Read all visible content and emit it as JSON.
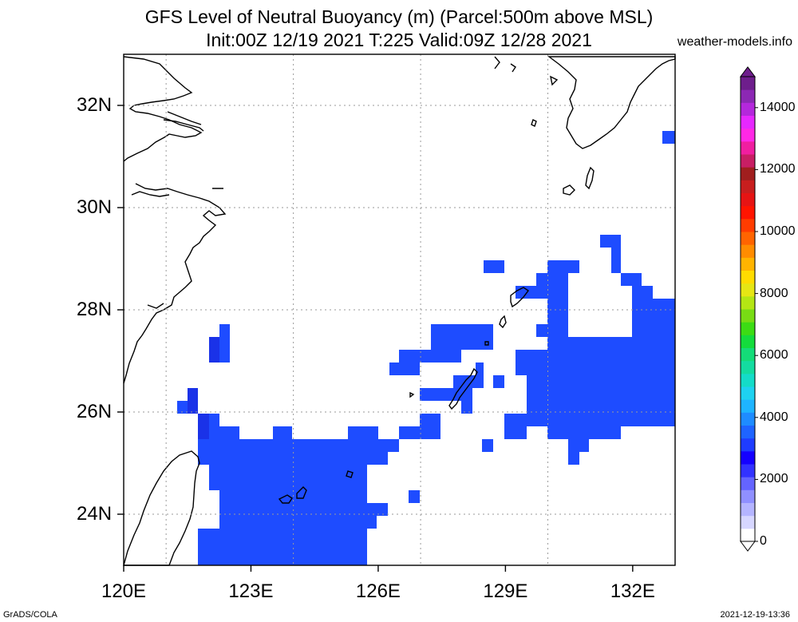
{
  "title_line1": "GFS Level of Neutral Buoyancy (m) (Parcel:500m above MSL)",
  "title_line2": "Init:00Z 12/19 2021 T:225 Valid:09Z 12/28 2021",
  "credit": "weather-models.info",
  "footer_left": "GrADS/COLA",
  "footer_right": "2021-12-19-13:36",
  "map": {
    "lon_range": [
      120,
      133
    ],
    "lat_range": [
      23,
      33
    ],
    "lon_ticks": [
      {
        "value": 120,
        "label": "120E"
      },
      {
        "value": 123,
        "label": "123E"
      },
      {
        "value": 126,
        "label": "126E"
      },
      {
        "value": 129,
        "label": "129E"
      },
      {
        "value": 132,
        "label": "132E"
      }
    ],
    "lat_ticks": [
      {
        "value": 24,
        "label": "24N"
      },
      {
        "value": 26,
        "label": "26N"
      },
      {
        "value": 28,
        "label": "28N"
      },
      {
        "value": 30,
        "label": "30N"
      },
      {
        "value": 32,
        "label": "32N"
      }
    ],
    "fill_color": "#1e4cff",
    "dark_fill_color": "#1a32e8"
  },
  "colorbar": {
    "range": [
      0,
      15000
    ],
    "labels": [
      {
        "value": 0,
        "text": "0"
      },
      {
        "value": 2000,
        "text": "2000"
      },
      {
        "value": 4000,
        "text": "4000"
      },
      {
        "value": 6000,
        "text": "6000"
      },
      {
        "value": 8000,
        "text": "8000"
      },
      {
        "value": 10000,
        "text": "10000"
      },
      {
        "value": 12000,
        "text": "12000"
      },
      {
        "value": 14000,
        "text": "14000"
      }
    ],
    "colors": [
      "#ffffff",
      "#d6d6ff",
      "#b4b4ff",
      "#9090ff",
      "#6464ff",
      "#3232ff",
      "#1400ff",
      "#1e3cff",
      "#1e64ff",
      "#1e8cff",
      "#1eb4ff",
      "#1ed2f0",
      "#14dcc8",
      "#14dca0",
      "#14dc78",
      "#14dc3c",
      "#3cdc14",
      "#78dc14",
      "#b4e614",
      "#e6e614",
      "#ffdc00",
      "#ffb400",
      "#ff8c00",
      "#ff6400",
      "#ff3c00",
      "#ff1400",
      "#e61414",
      "#c81e1e",
      "#a01e1e",
      "#c81e64",
      "#f01ea0",
      "#ff28e6",
      "#e628ff",
      "#b428dc",
      "#8c28b4",
      "#6e1e8c"
    ]
  }
}
